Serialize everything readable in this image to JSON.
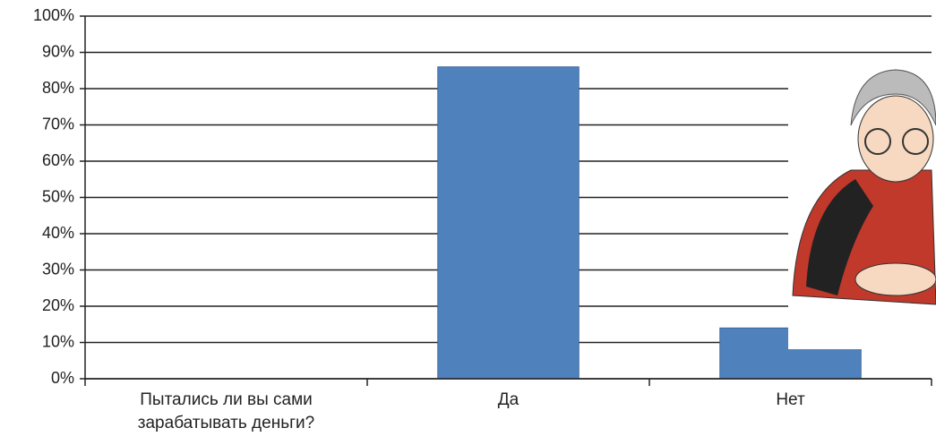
{
  "chart_data": {
    "type": "bar",
    "categories": [
      "Пытались ли вы сами зарабатывать деньги?",
      "Да",
      "Нет"
    ],
    "values": [
      null,
      86,
      14
    ],
    "color": "#4f81bd",
    "ylim": [
      0,
      100
    ],
    "yticks": [
      {
        "value": 0,
        "label": "0%"
      },
      {
        "value": 10,
        "label": "10%"
      },
      {
        "value": 20,
        "label": "20%"
      },
      {
        "value": 30,
        "label": "30%"
      },
      {
        "value": 40,
        "label": "40%"
      },
      {
        "value": 50,
        "label": "50%"
      },
      {
        "value": 60,
        "label": "60%"
      },
      {
        "value": 70,
        "label": "70%"
      },
      {
        "value": 80,
        "label": "80%"
      },
      {
        "value": 90,
        "label": "90%"
      },
      {
        "value": 100,
        "label": "100%"
      }
    ],
    "grid": true
  }
}
